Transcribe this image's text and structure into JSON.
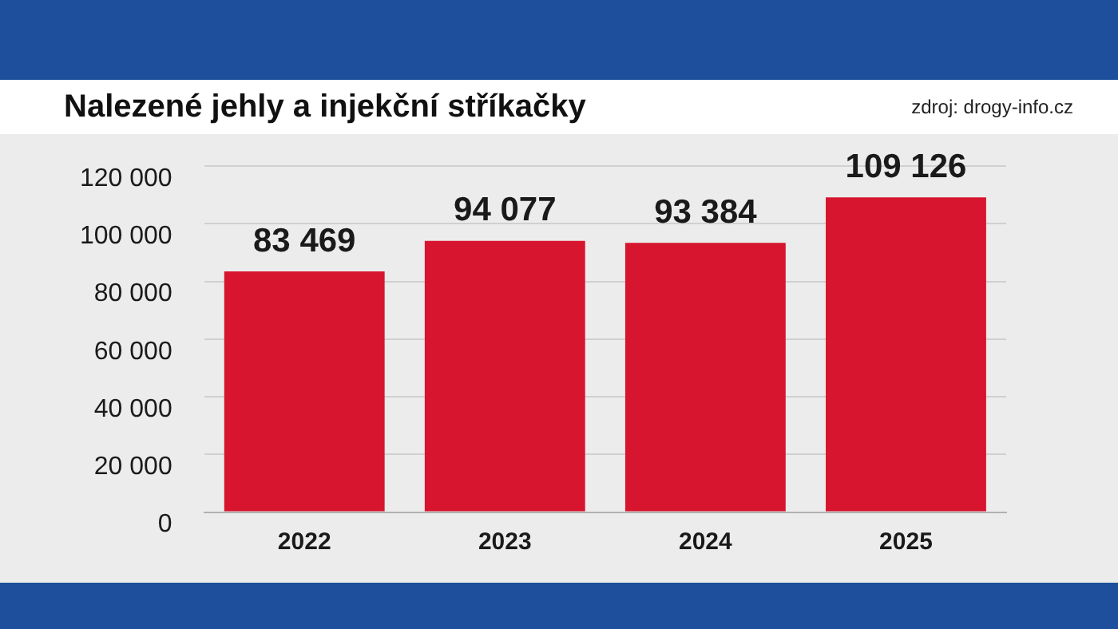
{
  "chart_data": {
    "type": "bar",
    "title": "Nalezené jehly a injekční stříkačky",
    "annotations": [
      "zdroj: drogy-info.cz"
    ],
    "categories": [
      "2022",
      "2023",
      "2024",
      "2025"
    ],
    "values": [
      83469,
      94077,
      93384,
      109126
    ],
    "color": "#d7152f",
    "value_labels": [
      "83 469",
      "94 077",
      "93 384",
      "109 126"
    ],
    "ylim": [
      0,
      120000
    ],
    "yticks": [
      {
        "value": 0,
        "label": "0"
      },
      {
        "value": 20000,
        "label": "20 000"
      },
      {
        "value": 40000,
        "label": "40 000"
      },
      {
        "value": 60000,
        "label": "60 000"
      },
      {
        "value": 80000,
        "label": "80 000"
      },
      {
        "value": 100000,
        "label": "100 000"
      },
      {
        "value": 120000,
        "label": "120 000"
      }
    ],
    "grid": "y"
  }
}
